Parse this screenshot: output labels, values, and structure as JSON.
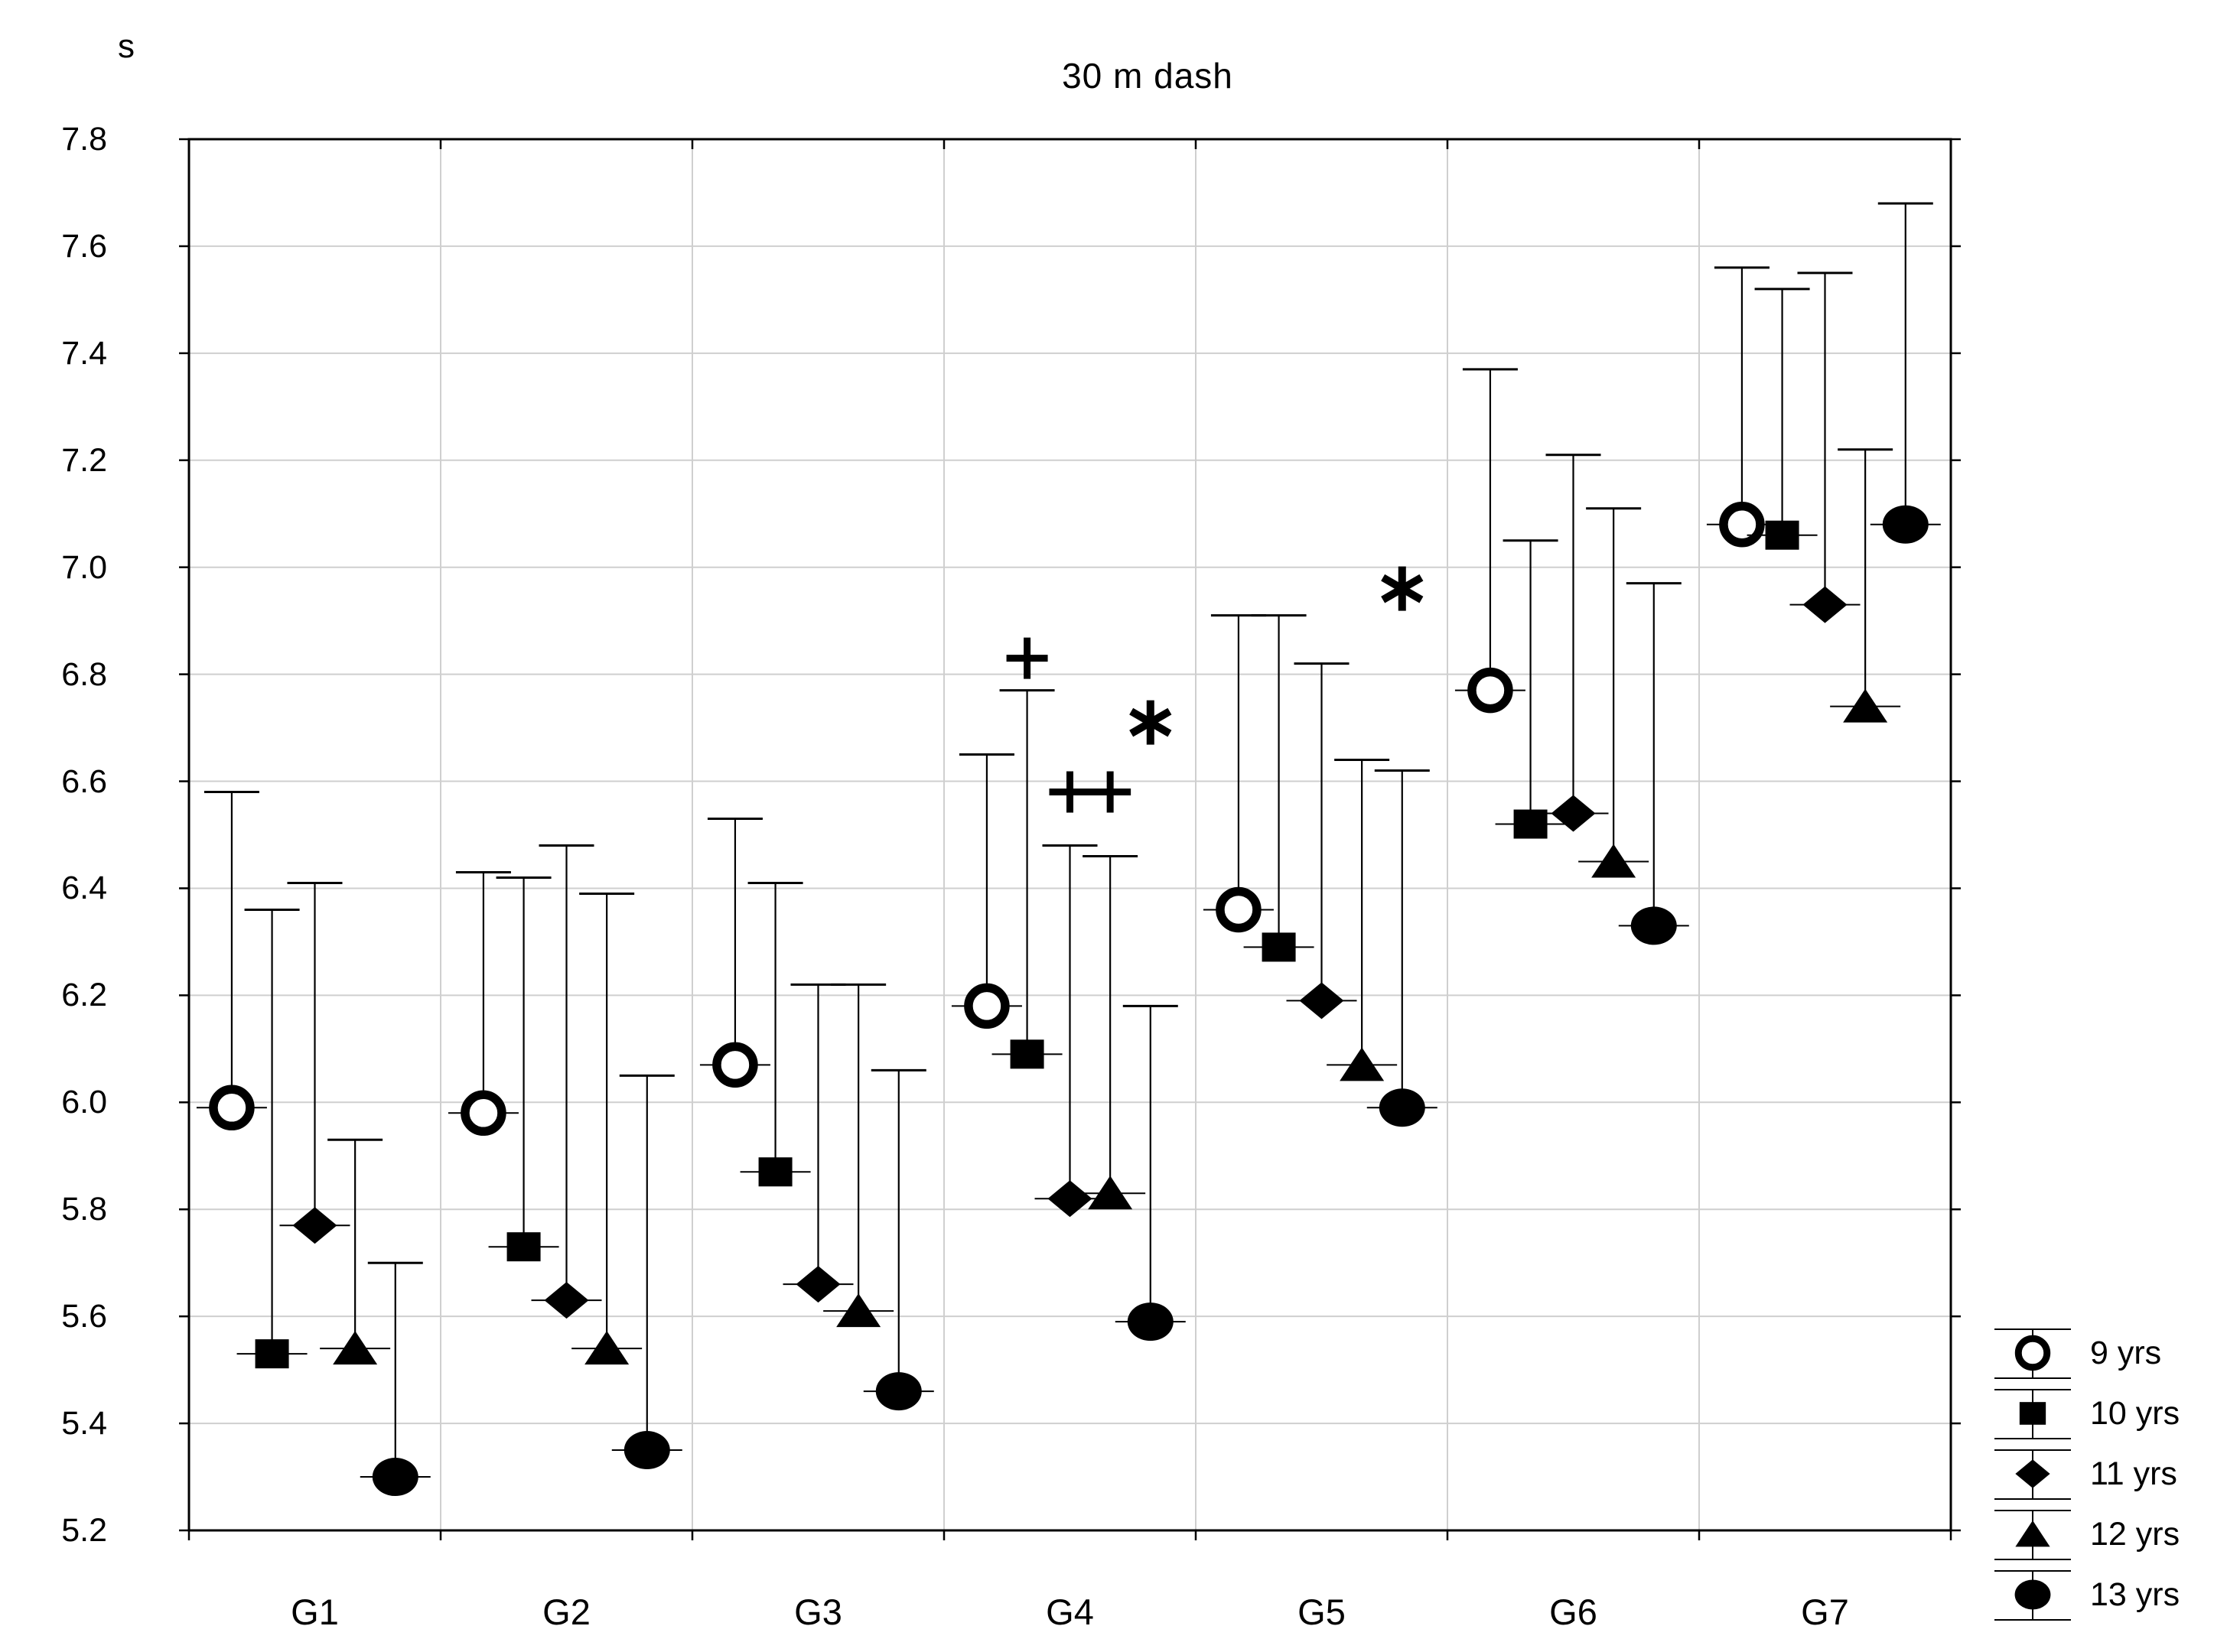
{
  "title": "30 m dash",
  "y_axis": {
    "unit_label": "s",
    "tick_labels": [
      "7.8",
      "7.6",
      "7.4",
      "7.2",
      "7.0",
      "6.8",
      "6.6",
      "6.4",
      "6.2",
      "6.0",
      "5.8",
      "5.6",
      "5.4",
      "5.2"
    ]
  },
  "x_axis": {
    "labels": [
      "G1",
      "G2",
      "G3",
      "G4",
      "G5",
      "G6",
      "G7"
    ]
  },
  "legend": {
    "items": [
      {
        "label": "9 yrs",
        "marker": "open-circle"
      },
      {
        "label": "10 yrs",
        "marker": "filled-square"
      },
      {
        "label": "11 yrs",
        "marker": "filled-diamond"
      },
      {
        "label": "12 yrs",
        "marker": "filled-triangle"
      },
      {
        "label": "13 yrs",
        "marker": "filled-circle"
      }
    ]
  },
  "colors": {
    "foreground": "#000000",
    "background": "#ffffff",
    "gridline": "#cfcfcf"
  },
  "chart_data": {
    "type": "scatter",
    "title": "30 m dash",
    "ylabel": "s",
    "xlabel": "",
    "ylim": [
      5.2,
      7.8
    ],
    "ytick_step": 0.2,
    "grid": true,
    "legend_position": "bottom-right",
    "error_bars": "upper-only",
    "categories": [
      "G1",
      "G2",
      "G3",
      "G4",
      "G5",
      "G6",
      "G7"
    ],
    "series": [
      {
        "name": "9 yrs",
        "marker": "open-circle",
        "means": [
          5.99,
          5.98,
          6.07,
          6.18,
          6.36,
          6.77,
          7.08
        ],
        "upper_whisker": [
          6.58,
          6.43,
          6.53,
          6.65,
          6.91,
          7.37,
          7.56
        ]
      },
      {
        "name": "10 yrs",
        "marker": "filled-square",
        "means": [
          5.53,
          5.73,
          5.87,
          6.09,
          6.29,
          6.52,
          7.06
        ],
        "upper_whisker": [
          6.36,
          6.42,
          6.41,
          6.77,
          6.91,
          7.05,
          7.52
        ]
      },
      {
        "name": "11 yrs",
        "marker": "filled-diamond",
        "means": [
          5.77,
          5.63,
          5.66,
          5.82,
          6.19,
          6.54,
          6.93
        ],
        "upper_whisker": [
          6.41,
          6.48,
          6.22,
          6.48,
          6.82,
          7.21,
          7.55
        ]
      },
      {
        "name": "12 yrs",
        "marker": "filled-triangle",
        "means": [
          5.54,
          5.54,
          5.61,
          5.83,
          6.07,
          6.45,
          6.74
        ],
        "upper_whisker": [
          5.93,
          6.39,
          6.22,
          6.46,
          6.64,
          7.11,
          7.22
        ]
      },
      {
        "name": "13 yrs",
        "marker": "filled-circle",
        "means": [
          5.3,
          5.35,
          5.46,
          5.59,
          5.99,
          6.33,
          7.08
        ],
        "upper_whisker": [
          5.7,
          6.05,
          6.06,
          6.18,
          6.62,
          6.97,
          7.68
        ]
      }
    ],
    "annotations": [
      {
        "group": "G4",
        "series": "10 yrs",
        "symbol": "+",
        "y": 6.83
      },
      {
        "group": "G4",
        "series": "11 yrs",
        "symbol": "+",
        "y": 6.58
      },
      {
        "group": "G4",
        "series": "12 yrs",
        "symbol": "+",
        "y": 6.58
      },
      {
        "group": "G4",
        "series": "13 yrs",
        "symbol": "*",
        "y": 6.71
      },
      {
        "group": "G5",
        "series": "13 yrs",
        "symbol": "*",
        "y": 6.96
      }
    ]
  }
}
